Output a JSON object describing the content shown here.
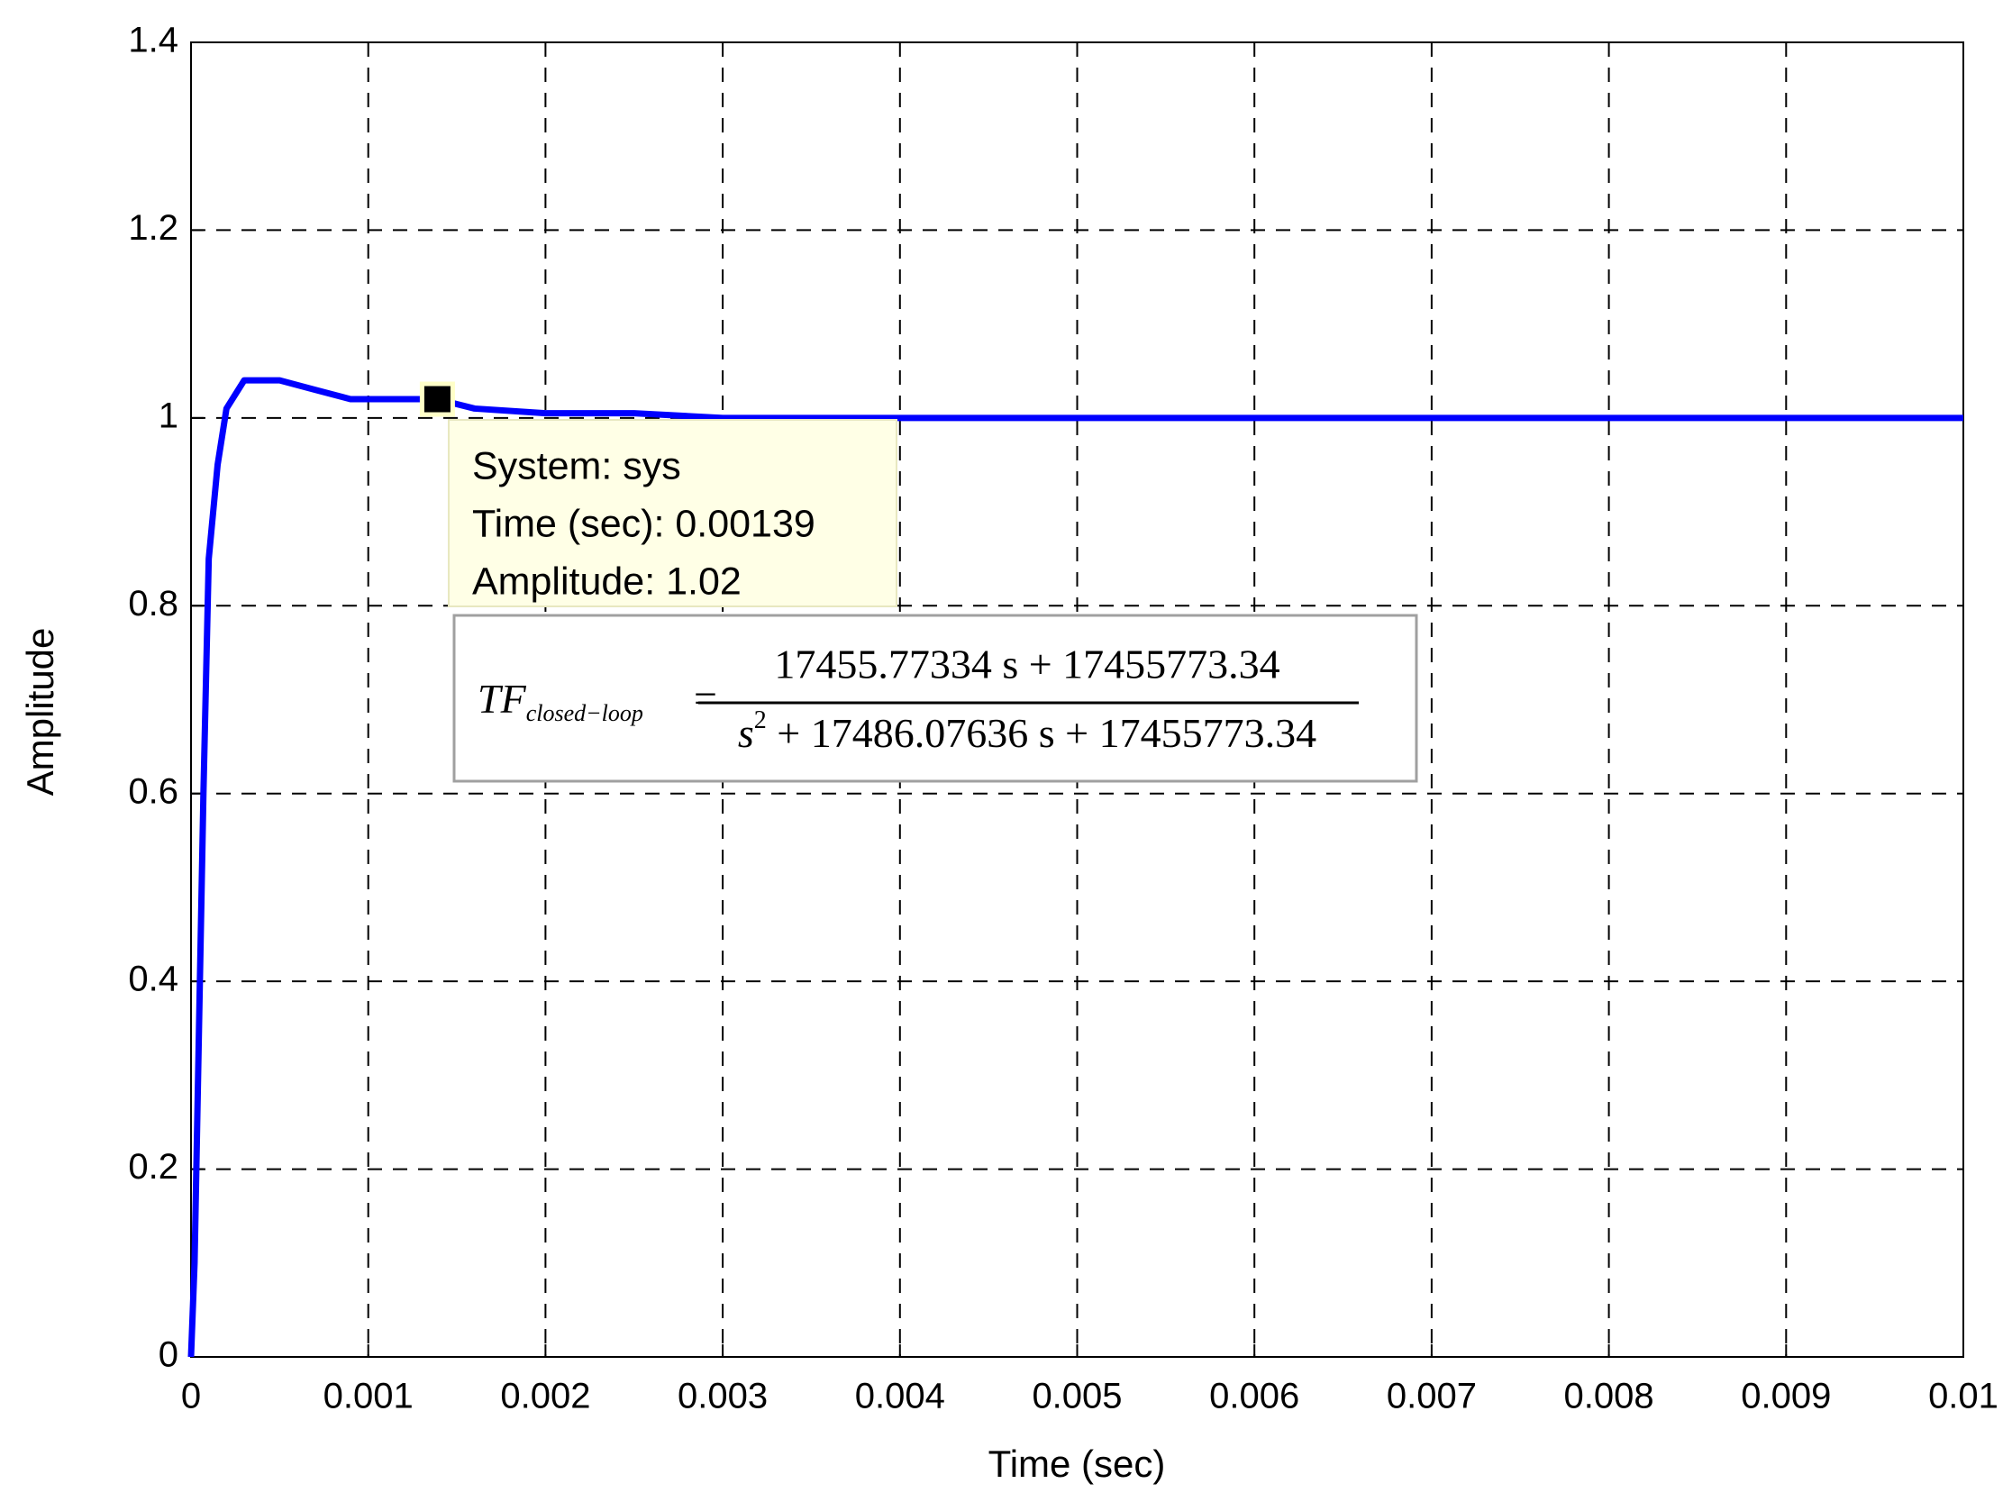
{
  "chart_data": {
    "type": "line",
    "xlabel": "Time (sec)",
    "ylabel": "Amplitude",
    "x": [
      0,
      2e-05,
      4e-05,
      7e-05,
      0.0001,
      0.00015,
      0.0002,
      0.0003,
      0.0005,
      0.0007,
      0.0009,
      0.0011,
      0.00139,
      0.0016,
      0.002,
      0.0025,
      0.003,
      0.01
    ],
    "series": [
      {
        "name": "sys",
        "color": "#0000ff",
        "values": [
          0,
          0.1,
          0.3,
          0.6,
          0.85,
          0.95,
          1.01,
          1.04,
          1.04,
          1.03,
          1.02,
          1.02,
          1.02,
          1.01,
          1.005,
          1.005,
          1.0,
          1.0
        ]
      }
    ],
    "xlim": [
      0,
      0.01
    ],
    "ylim": [
      0,
      1.4
    ],
    "xticks": [
      0,
      0.001,
      0.002,
      0.003,
      0.004,
      0.005,
      0.006,
      0.007,
      0.008,
      0.009,
      0.01
    ],
    "yticks": [
      0,
      0.2,
      0.4,
      0.6,
      0.8,
      1,
      1.2,
      1.4
    ],
    "grid": true,
    "datatip": {
      "x": 0.00139,
      "y": 1.02,
      "lines": [
        "System: sys",
        "Time (sec): 0.00139",
        "Amplitude: 1.02"
      ]
    },
    "equation": {
      "lhs": "TF",
      "lhs_subscript": "closed−loop",
      "equals": "=",
      "numerator": "17455.77334 s + 17455773.34",
      "denominator_base": "s",
      "denominator_exponent": "2",
      "denominator_rest": " + 17486.07636 s + 17455773.34"
    }
  }
}
